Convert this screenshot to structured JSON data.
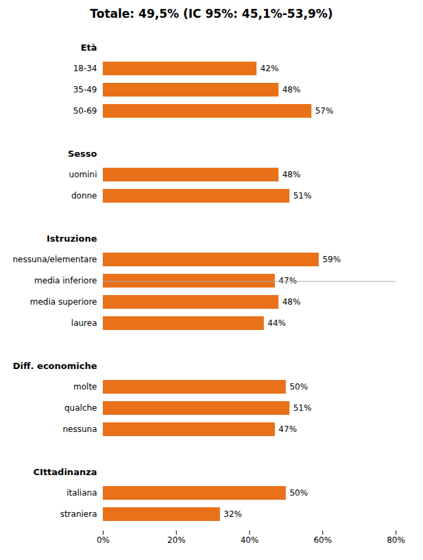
{
  "chart_data": {
    "type": "bar",
    "orientation": "horizontal",
    "title": "Totale: 49,5% (IC 95%: 45,1%-53,9%)",
    "categories": [
      "Età",
      "18-34",
      "35-49",
      "50-69",
      null,
      "Sesso",
      "uomini",
      "donne",
      null,
      "Istruzione",
      "nessuna/elementare",
      "media inferiore",
      "media superiore",
      "laurea",
      null,
      "Diff. economiche",
      "molte",
      "qualche",
      "nessuna",
      null,
      "CIttadinanza",
      "italiana",
      "straniera"
    ],
    "values": [
      null,
      42,
      48,
      57,
      null,
      null,
      48,
      51,
      null,
      null,
      59,
      47,
      48,
      44,
      null,
      null,
      50,
      51,
      47,
      null,
      null,
      50,
      32
    ],
    "value_labels": [
      null,
      "42%",
      "48%",
      "57%",
      null,
      null,
      "48%",
      "51%",
      null,
      null,
      "59%",
      "47%",
      "48%",
      "44%",
      null,
      null,
      "50%",
      "51%",
      "47%",
      null,
      null,
      "50%",
      "32%"
    ],
    "data_labels": true,
    "color": "#E8711A",
    "xlim": [
      0,
      80
    ],
    "xticks": [
      {
        "value": 0,
        "label": "0%"
      },
      {
        "value": 20,
        "label": "20%"
      },
      {
        "value": 40,
        "label": "40%"
      },
      {
        "value": 60,
        "label": "60%"
      },
      {
        "value": 80,
        "label": "80%"
      }
    ],
    "grid": false
  }
}
